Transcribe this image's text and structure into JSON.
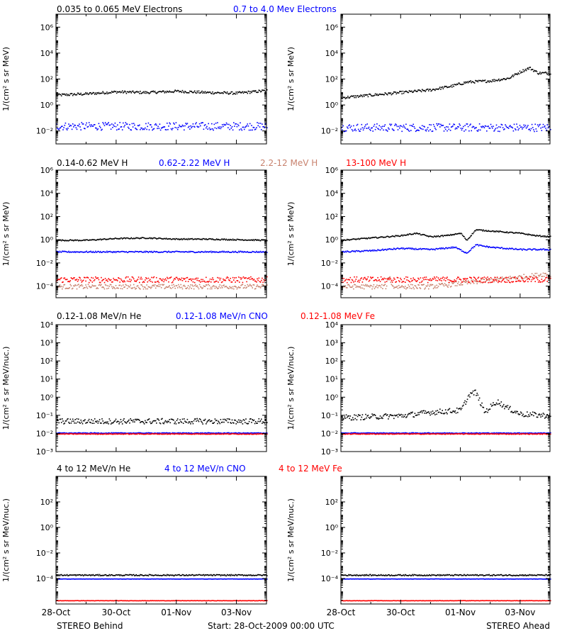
{
  "colors": {
    "black": "#000000",
    "blue": "#0000ff",
    "tan": "#c8826e",
    "red": "#ff0000"
  },
  "x_axis": {
    "tick_labels": [
      "28-Oct",
      "30-Oct",
      "01-Nov",
      "03-Nov"
    ]
  },
  "footer": {
    "left": "STEREO Behind",
    "center": "Start: 28-Oct-2009 00:00 UTC",
    "right": "STEREO Ahead"
  },
  "rows": [
    {
      "titles": [
        {
          "text": "0.035 to 0.065 MeV Electrons",
          "color": "black"
        },
        {
          "text": "0.7 to 4.0 Mev Electrons",
          "color": "blue"
        }
      ],
      "ylabel": "1/(cm² s sr MeV)",
      "tick_labels": [
        "10⁶",
        "10⁴",
        "10²",
        "10⁰",
        "10⁻²"
      ]
    },
    {
      "titles": [
        {
          "text": "0.14-0.62 MeV H",
          "color": "black"
        },
        {
          "text": "0.62-2.22 MeV H",
          "color": "blue"
        },
        {
          "text": "2.2-12 MeV H",
          "color": "tan"
        },
        {
          "text": "13-100 MeV H",
          "color": "red"
        }
      ],
      "ylabel": "1/(cm² s sr MeV)",
      "tick_labels": [
        "10⁶",
        "10⁴",
        "10²",
        "10⁰",
        "10⁻²",
        "10⁻⁴"
      ]
    },
    {
      "titles": [
        {
          "text": "0.12-1.08 MeV/n He",
          "color": "black"
        },
        {
          "text": "0.12-1.08 MeV/n CNO",
          "color": "blue"
        },
        {
          "text": "0.12-1.08 MeV Fe",
          "color": "red"
        }
      ],
      "ylabel": "1/(cm² s sr MeV/nuc.)",
      "tick_labels": [
        "10⁴",
        "10³",
        "10²",
        "10¹",
        "10⁰",
        "10⁻¹",
        "10⁻²",
        "10⁻³"
      ]
    },
    {
      "titles": [
        {
          "text": "4 to 12 MeV/n He",
          "color": "black"
        },
        {
          "text": "4 to 12 MeV/n CNO",
          "color": "blue"
        },
        {
          "text": "4 to 12 MeV Fe",
          "color": "red"
        }
      ],
      "ylabel": "1/(cm² s sr MeV/nuc.)",
      "tick_labels": [
        "10²",
        "10⁰",
        "10⁻²",
        "10⁻⁴"
      ]
    }
  ],
  "chart_data": [
    {
      "type": "scatter",
      "row": 0,
      "col": 0,
      "spacecraft": "STEREO Behind",
      "yscale": "log",
      "xlim": [
        0,
        7
      ],
      "ylim_log10": [
        -3,
        7
      ],
      "yticks_log10": [
        6,
        4,
        2,
        0,
        -2
      ],
      "series": [
        {
          "name": "0.035 to 0.065 MeV Electrons",
          "color": "black",
          "x": [
            0,
            1,
            2,
            3,
            4,
            5,
            6,
            7
          ],
          "log10_y": [
            0.8,
            0.9,
            1.05,
            1.0,
            1.1,
            1.0,
            0.95,
            1.15
          ],
          "noise": 0.1
        },
        {
          "name": "0.7 to 4.0 Mev Electrons",
          "color": "blue",
          "x": [
            0,
            7
          ],
          "log10_y": [
            -1.6,
            -1.6
          ],
          "noise": 0.3
        }
      ]
    },
    {
      "type": "scatter",
      "row": 0,
      "col": 1,
      "spacecraft": "STEREO Ahead",
      "yscale": "log",
      "xlim": [
        0,
        7
      ],
      "ylim_log10": [
        -3,
        7
      ],
      "yticks_log10": [
        6,
        4,
        2,
        0,
        -2
      ],
      "series": [
        {
          "name": "0.035 to 0.065 MeV Electrons",
          "color": "black",
          "x": [
            0,
            1,
            2,
            3,
            3.7,
            4.2,
            5,
            5.6,
            6.0,
            6.3,
            6.6,
            7
          ],
          "log10_y": [
            0.6,
            0.8,
            1.0,
            1.2,
            1.5,
            1.8,
            1.9,
            2.1,
            2.6,
            2.9,
            2.5,
            2.5
          ],
          "noise": 0.1
        },
        {
          "name": "0.7 to 4.0 Mev Electrons",
          "color": "blue",
          "x": [
            0,
            7
          ],
          "log10_y": [
            -1.7,
            -1.7
          ],
          "noise": 0.3
        }
      ]
    },
    {
      "type": "scatter",
      "row": 1,
      "col": 0,
      "spacecraft": "STEREO Behind",
      "yscale": "log",
      "xlim": [
        0,
        7
      ],
      "ylim_log10": [
        -5,
        6
      ],
      "yticks_log10": [
        6,
        4,
        2,
        0,
        -2,
        -4
      ],
      "series": [
        {
          "name": "0.14-0.62 MeV H",
          "color": "black",
          "x": [
            0,
            1,
            2,
            3,
            4,
            5,
            6,
            7
          ],
          "log10_y": [
            0.0,
            0.0,
            0.15,
            0.2,
            0.1,
            0.1,
            0.05,
            0.0
          ],
          "noise": 0.05
        },
        {
          "name": "0.62-2.22 MeV H",
          "color": "blue",
          "x": [
            0,
            7
          ],
          "log10_y": [
            -1.0,
            -1.0
          ],
          "noise": 0.06
        },
        {
          "name": "2.2-12 MeV H",
          "color": "tan",
          "x": [
            0,
            7
          ],
          "log10_y": [
            -4.0,
            -4.0
          ],
          "noise": 0.2
        },
        {
          "name": "13-100 MeV H",
          "color": "red",
          "x": [
            0,
            7
          ],
          "log10_y": [
            -3.4,
            -3.4
          ],
          "noise": 0.25
        }
      ]
    },
    {
      "type": "scatter",
      "row": 1,
      "col": 1,
      "spacecraft": "STEREO Ahead",
      "yscale": "log",
      "xlim": [
        0,
        7
      ],
      "ylim_log10": [
        -5,
        6
      ],
      "yticks_log10": [
        6,
        4,
        2,
        0,
        -2,
        -4
      ],
      "series": [
        {
          "name": "0.14-0.62 MeV H",
          "color": "black",
          "x": [
            0,
            1,
            2,
            2.5,
            3,
            3.5,
            4.0,
            4.2,
            4.5,
            5,
            5.5,
            6,
            6.5,
            7
          ],
          "log10_y": [
            0.0,
            0.2,
            0.4,
            0.6,
            0.3,
            0.4,
            0.6,
            0.0,
            0.9,
            0.8,
            0.7,
            0.6,
            0.4,
            0.3
          ],
          "noise": 0.05
        },
        {
          "name": "0.62-2.22 MeV H",
          "color": "blue",
          "x": [
            0,
            1,
            2,
            3,
            3.8,
            4.2,
            4.5,
            5,
            5.5,
            6,
            7
          ],
          "log10_y": [
            -1.0,
            -0.9,
            -0.7,
            -0.8,
            -0.6,
            -1.1,
            -0.4,
            -0.6,
            -0.7,
            -0.8,
            -0.8
          ],
          "noise": 0.06
        },
        {
          "name": "2.2-12 MeV H",
          "color": "tan",
          "x": [
            0,
            1.5,
            1.6,
            1.7,
            3,
            6.6,
            6.8,
            7
          ],
          "log10_y": [
            -4.0,
            -4.0,
            -3.0,
            -4.0,
            -4.0,
            -3.0,
            -2.9,
            -3.1
          ],
          "noise": 0.2
        },
        {
          "name": "13-100 MeV H",
          "color": "red",
          "x": [
            0,
            7
          ],
          "log10_y": [
            -3.4,
            -3.4
          ],
          "noise": 0.25
        }
      ]
    },
    {
      "type": "scatter",
      "row": 2,
      "col": 0,
      "spacecraft": "STEREO Behind",
      "yscale": "log",
      "xlim": [
        0,
        7
      ],
      "ylim_log10": [
        -3,
        4
      ],
      "yticks_log10": [
        4,
        3,
        2,
        1,
        0,
        -1,
        -2,
        -3
      ],
      "series": [
        {
          "name": "0.12-1.08 MeV/n He",
          "color": "black",
          "x": [
            0,
            7
          ],
          "log10_y": [
            -1.3,
            -1.3
          ],
          "noise": 0.15
        },
        {
          "name": "0.12-1.08 MeV/n CNO",
          "color": "blue",
          "x": [
            0,
            7
          ],
          "log10_y": [
            -1.95,
            -1.95
          ],
          "noise": 0.02
        },
        {
          "name": "0.12-1.08 MeV Fe",
          "color": "red",
          "x": [
            0,
            7
          ],
          "log10_y": [
            -2.0,
            -2.0
          ],
          "noise": 0.02
        }
      ]
    },
    {
      "type": "scatter",
      "row": 2,
      "col": 1,
      "spacecraft": "STEREO Ahead",
      "yscale": "log",
      "xlim": [
        0,
        7
      ],
      "ylim_log10": [
        -3,
        4
      ],
      "yticks_log10": [
        4,
        3,
        2,
        1,
        0,
        -1,
        -2,
        -3
      ],
      "series": [
        {
          "name": "0.12-1.08 MeV/n He",
          "color": "black",
          "x": [
            0,
            2,
            3,
            4,
            4.3,
            4.5,
            4.8,
            5.2,
            5.6,
            6,
            7
          ],
          "log10_y": [
            -1.1,
            -1.0,
            -0.8,
            -0.7,
            0.2,
            0.3,
            -0.8,
            -0.2,
            -0.6,
            -0.9,
            -1.0
          ],
          "noise": 0.15
        },
        {
          "name": "0.12-1.08 MeV/n CNO",
          "color": "blue",
          "x": [
            0,
            7
          ],
          "log10_y": [
            -1.95,
            -1.95
          ],
          "noise": 0.02
        },
        {
          "name": "0.12-1.08 MeV Fe",
          "color": "red",
          "x": [
            0,
            7
          ],
          "log10_y": [
            -2.0,
            -2.0
          ],
          "noise": 0.02
        }
      ]
    },
    {
      "type": "scatter",
      "row": 3,
      "col": 0,
      "spacecraft": "STEREO Behind",
      "yscale": "log",
      "xlim": [
        0,
        7
      ],
      "ylim_log10": [
        -6,
        4
      ],
      "yticks_log10": [
        2,
        0,
        -2,
        -4
      ],
      "series": [
        {
          "name": "4 to 12 MeV/n He",
          "color": "black",
          "x": [
            0,
            7
          ],
          "log10_y": [
            -3.7,
            -3.7
          ],
          "noise": 0.05
        },
        {
          "name": "4 to 12 MeV/n CNO",
          "color": "blue",
          "x": [
            0,
            7
          ],
          "log10_y": [
            -4.0,
            -4.0
          ],
          "noise": 0.01
        },
        {
          "name": "4 to 12 MeV Fe",
          "color": "red",
          "x": [
            0,
            7
          ],
          "log10_y": [
            -5.7,
            -5.7
          ],
          "noise": 0.01
        }
      ]
    },
    {
      "type": "scatter",
      "row": 3,
      "col": 1,
      "spacecraft": "STEREO Ahead",
      "yscale": "log",
      "xlim": [
        0,
        7
      ],
      "ylim_log10": [
        -6,
        4
      ],
      "yticks_log10": [
        2,
        0,
        -2,
        -4
      ],
      "series": [
        {
          "name": "4 to 12 MeV/n He",
          "color": "black",
          "x": [
            0,
            7
          ],
          "log10_y": [
            -3.7,
            -3.7
          ],
          "noise": 0.05
        },
        {
          "name": "4 to 12 MeV/n CNO",
          "color": "blue",
          "x": [
            0,
            7
          ],
          "log10_y": [
            -4.0,
            -4.0
          ],
          "noise": 0.01
        },
        {
          "name": "4 to 12 MeV Fe",
          "color": "red",
          "x": [
            0,
            7
          ],
          "log10_y": [
            -5.7,
            -5.7
          ],
          "noise": 0.01
        }
      ]
    }
  ]
}
